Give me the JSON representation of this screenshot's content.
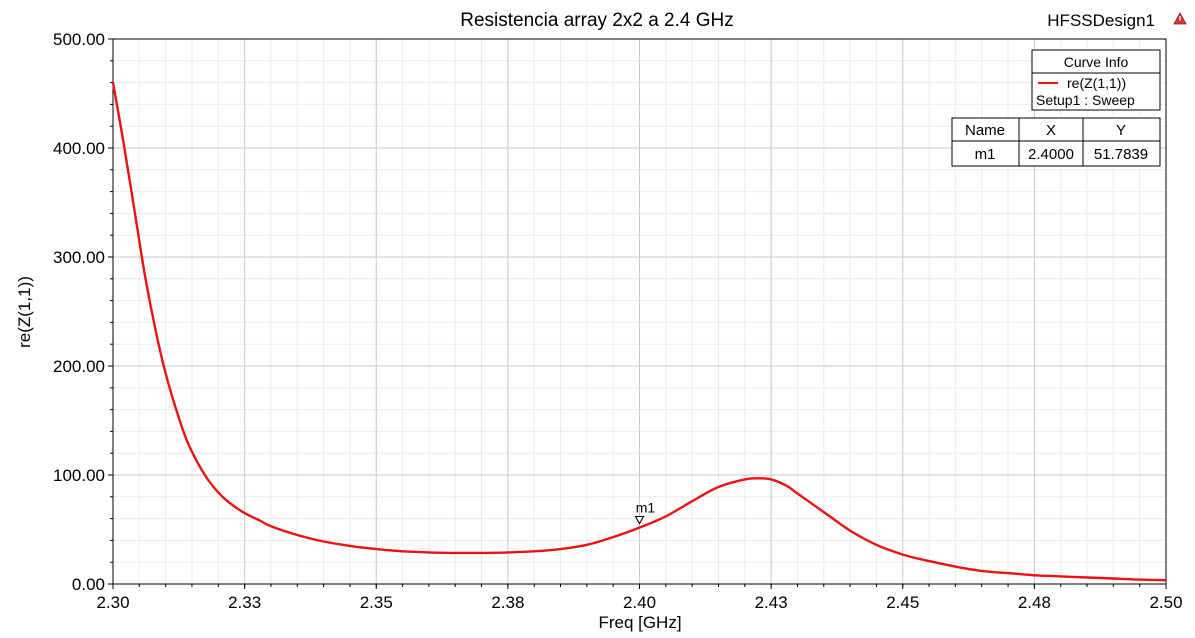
{
  "design_name": "HFSSDesign1",
  "chart_data": {
    "type": "line",
    "title": "Resistencia array 2x2 a 2.4 GHz",
    "xlabel": "Freq [GHz]",
    "ylabel": "re(Z(1,1))",
    "xlim": [
      2.3,
      2.5
    ],
    "ylim": [
      0,
      500
    ],
    "grid": true,
    "x_ticks": [
      {
        "value": 2.3,
        "label": "2.30"
      },
      {
        "value": 2.325,
        "label": "2.33"
      },
      {
        "value": 2.35,
        "label": "2.35"
      },
      {
        "value": 2.375,
        "label": "2.38"
      },
      {
        "value": 2.4,
        "label": "2.40"
      },
      {
        "value": 2.425,
        "label": "2.43"
      },
      {
        "value": 2.45,
        "label": "2.45"
      },
      {
        "value": 2.475,
        "label": "2.48"
      },
      {
        "value": 2.5,
        "label": "2.50"
      }
    ],
    "y_ticks": [
      {
        "value": 0,
        "label": "0.00"
      },
      {
        "value": 100,
        "label": "100.00"
      },
      {
        "value": 200,
        "label": "200.00"
      },
      {
        "value": 300,
        "label": "300.00"
      },
      {
        "value": 400,
        "label": "400.00"
      },
      {
        "value": 500,
        "label": "500.00"
      }
    ],
    "series": [
      {
        "name": "re(Z(1,1))",
        "subtitle": "Setup1 : Sweep",
        "color": "#ee1111",
        "x": [
          2.3,
          2.302,
          2.304,
          2.306,
          2.308,
          2.31,
          2.312,
          2.314,
          2.316,
          2.318,
          2.32,
          2.322,
          2.325,
          2.328,
          2.33,
          2.335,
          2.34,
          2.345,
          2.35,
          2.355,
          2.36,
          2.365,
          2.37,
          2.375,
          2.38,
          2.385,
          2.39,
          2.395,
          2.4,
          2.405,
          2.41,
          2.415,
          2.42,
          2.4225,
          2.425,
          2.428,
          2.43,
          2.435,
          2.44,
          2.445,
          2.45,
          2.455,
          2.46,
          2.465,
          2.47,
          2.475,
          2.48,
          2.485,
          2.49,
          2.495,
          2.5
        ],
        "y": [
          460,
          405,
          345,
          285,
          235,
          193,
          160,
          132,
          112,
          96,
          84,
          75,
          65,
          58,
          53,
          45,
          39,
          35,
          32,
          30,
          29,
          28.5,
          28.5,
          29,
          30,
          32,
          36,
          43,
          51.78,
          62,
          76,
          89,
          96,
          97,
          96,
          90,
          83,
          66,
          49,
          36,
          27,
          21,
          16,
          12,
          10,
          8,
          7,
          6,
          5,
          4,
          3.5
        ]
      }
    ],
    "marker": {
      "name": "m1",
      "x": 2.4,
      "y": 51.7839,
      "x_label": "2.4000",
      "y_label": "51.7839"
    },
    "legend": {
      "placement": "top-right",
      "title": "Curve Info"
    },
    "marker_table": {
      "headers": [
        "Name",
        "X",
        "Y"
      ],
      "rows": [
        [
          "m1",
          "2.4000",
          "51.7839"
        ]
      ]
    }
  }
}
